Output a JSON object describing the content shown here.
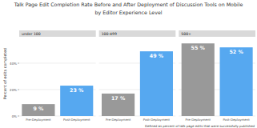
{
  "title": "Talk Page Edit Completion Rate Before and After Deployment of Discussion Tools on Mobile",
  "subtitle": "by Editor Experience Level",
  "y_label": "Percent of edits completed",
  "caption": "Defined as percent of talk page edits that were successfully published",
  "chart_data": [
    {
      "type": "bar",
      "title": "under 100",
      "categories": [
        "Pre-Deployment",
        "Post-Deployment"
      ],
      "values": [
        9,
        23
      ],
      "value_labels": [
        "9 %",
        "23 %"
      ],
      "colors": [
        "#999999",
        "#56a8f0"
      ],
      "ylim": [
        0,
        60
      ],
      "yticks": [
        {
          "value": 0,
          "label": "0%"
        },
        {
          "value": 20,
          "label": "20%"
        },
        {
          "value": 40,
          "label": "40%"
        }
      ],
      "grid": true,
      "data_labels": true,
      "tick_labels": true
    },
    {
      "type": "bar",
      "title": "100-499",
      "categories": [
        "Pre-Deployment",
        "Post-Deployment"
      ],
      "values": [
        17,
        49
      ],
      "value_labels": [
        "17 %",
        "49 %"
      ],
      "colors": [
        "#999999",
        "#56a8f0"
      ],
      "ylim": [
        0,
        60
      ],
      "yticks": [
        0,
        20,
        40
      ],
      "grid": true,
      "data_labels": true,
      "tick_labels": "x"
    },
    {
      "type": "bar",
      "title": "500+",
      "categories": [
        "Pre-Deployment",
        "Post-Deployment"
      ],
      "values": [
        55,
        52
      ],
      "value_labels": [
        "55 %",
        "52 %"
      ],
      "colors": [
        "#999999",
        "#56a8f0"
      ],
      "ylim": [
        0,
        60
      ],
      "yticks": [
        0,
        20,
        40
      ],
      "grid": true,
      "data_labels": true,
      "tick_labels": "x"
    }
  ]
}
